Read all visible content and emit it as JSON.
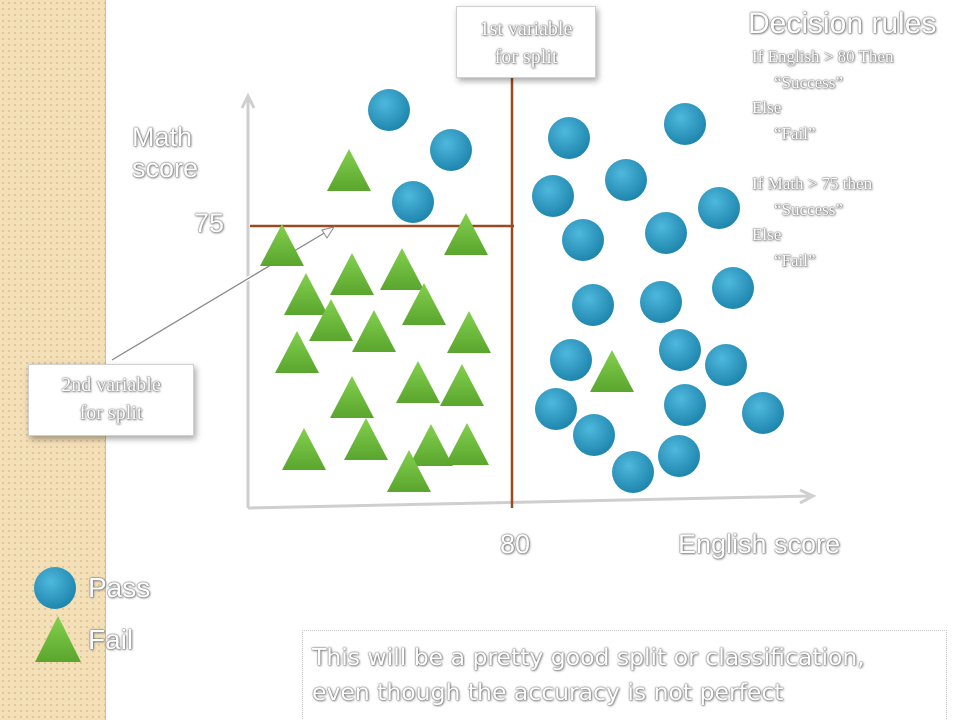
{
  "diagram": {
    "y_axis_label": [
      "Math",
      "score"
    ],
    "x_axis_label": "English score",
    "threshold_y_label": "75",
    "threshold_x_label": "80",
    "first_split_callout": [
      "1st variable",
      "for split"
    ],
    "second_split_callout": [
      "2nd variable",
      "for split"
    ]
  },
  "rules": {
    "title": "Decision rules",
    "lines": [
      {
        "text": "If English > 80 Then",
        "indent": false
      },
      {
        "text": "“Success”",
        "indent": true
      },
      {
        "text": "Else",
        "indent": false
      },
      {
        "text": "“Fail”",
        "indent": true
      },
      {
        "text": "",
        "indent": false
      },
      {
        "text": "If Math > 75 then",
        "indent": false
      },
      {
        "text": "“Success”",
        "indent": true
      },
      {
        "text": "Else",
        "indent": false
      },
      {
        "text": "“Fail”",
        "indent": true
      }
    ]
  },
  "legend": {
    "pass_label": "Pass",
    "fail_label": "Fail"
  },
  "note": {
    "line1": "This will be a pretty good split or classification,",
    "line2": "even though the accuracy is not perfect"
  },
  "colors": {
    "pass": "#2e9cc4",
    "fail": "#6cbc3c",
    "split_line": "#9a4a1e",
    "background_strip": "#f3dfb8"
  }
}
